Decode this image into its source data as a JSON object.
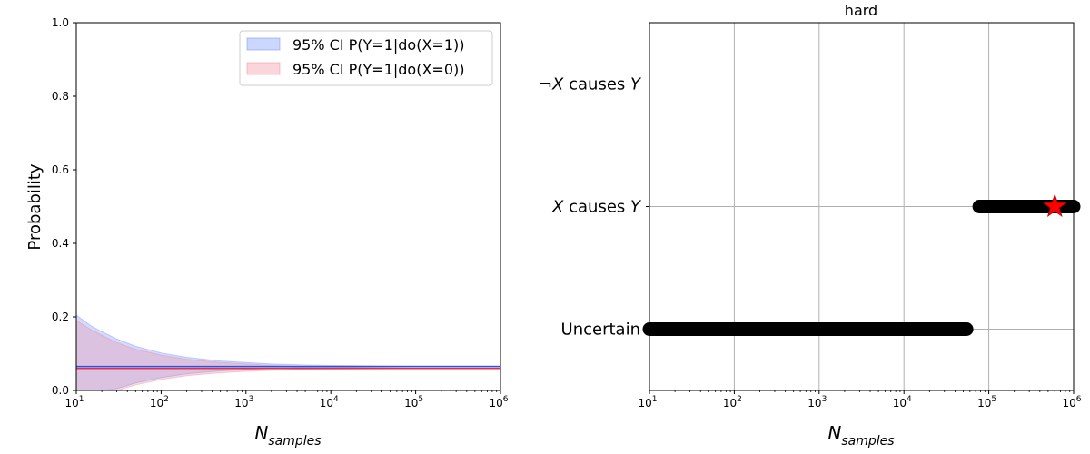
{
  "chart_data": [
    {
      "type": "area",
      "title": "",
      "xlabel_main": "N",
      "xlabel_sub": "samples",
      "ylabel": "Probability",
      "xscale": "log",
      "xlim": [
        10,
        1000000
      ],
      "ylim": [
        0,
        1
      ],
      "xticks": [
        {
          "base": "10",
          "exp": "1"
        },
        {
          "base": "10",
          "exp": "2"
        },
        {
          "base": "10",
          "exp": "3"
        },
        {
          "base": "10",
          "exp": "4"
        },
        {
          "base": "10",
          "exp": "5"
        },
        {
          "base": "10",
          "exp": "6"
        }
      ],
      "yticks": [
        "0.0",
        "0.2",
        "0.4",
        "0.6",
        "0.8",
        "1.0"
      ],
      "grid": false,
      "legend_position": "top-right",
      "x": [
        10,
        15,
        20,
        30,
        50,
        100,
        200,
        500,
        1000,
        2000,
        5000,
        10000,
        30000,
        100000,
        1000000
      ],
      "series": [
        {
          "name": "95% CI P(Y=1|do(X=1))",
          "color": "#6b8cff",
          "line_color": "#3050d8",
          "mean": 0.065,
          "lower": [
            0.0,
            0.0,
            0.0,
            0.005,
            0.02,
            0.035,
            0.045,
            0.053,
            0.057,
            0.06,
            0.062,
            0.063,
            0.064,
            0.065,
            0.065
          ],
          "upper": [
            0.205,
            0.175,
            0.16,
            0.14,
            0.12,
            0.102,
            0.09,
            0.08,
            0.076,
            0.072,
            0.069,
            0.068,
            0.067,
            0.066,
            0.066
          ]
        },
        {
          "name": "95% CI P(Y=1|do(X=0))",
          "color": "#f08898",
          "line_color": "#e03050",
          "mean": 0.06,
          "lower": [
            0.0,
            0.0,
            0.0,
            0.0,
            0.015,
            0.03,
            0.04,
            0.048,
            0.052,
            0.055,
            0.057,
            0.058,
            0.059,
            0.06,
            0.06
          ],
          "upper": [
            0.19,
            0.165,
            0.15,
            0.13,
            0.112,
            0.096,
            0.085,
            0.076,
            0.072,
            0.068,
            0.065,
            0.064,
            0.062,
            0.061,
            0.061
          ]
        }
      ]
    },
    {
      "type": "scatter",
      "title": "hard",
      "xlabel_main": "N",
      "xlabel_sub": "samples",
      "xscale": "log",
      "xlim": [
        10,
        1000000
      ],
      "xticks": [
        {
          "base": "10",
          "exp": "1"
        },
        {
          "base": "10",
          "exp": "2"
        },
        {
          "base": "10",
          "exp": "3"
        },
        {
          "base": "10",
          "exp": "4"
        },
        {
          "base": "10",
          "exp": "5"
        },
        {
          "base": "10",
          "exp": "6"
        }
      ],
      "categories": [
        {
          "prefix": "",
          "var": "",
          "mid": "Uncertain",
          "var2": ""
        },
        {
          "prefix": "",
          "var": "X",
          "mid": " causes ",
          "var2": "Y"
        },
        {
          "prefix": "¬",
          "var": "X",
          "mid": " causes ",
          "var2": "Y"
        }
      ],
      "grid": true,
      "series": [
        {
          "label_index": 0,
          "x_start": 10,
          "x_end": 65000,
          "color": "#000000"
        },
        {
          "label_index": 1,
          "x_start": 65000,
          "x_end": 1000000,
          "color": "#000000"
        }
      ],
      "marker": {
        "shape": "star",
        "x": 600000,
        "category_index": 1,
        "color": "#ff0000"
      }
    }
  ]
}
